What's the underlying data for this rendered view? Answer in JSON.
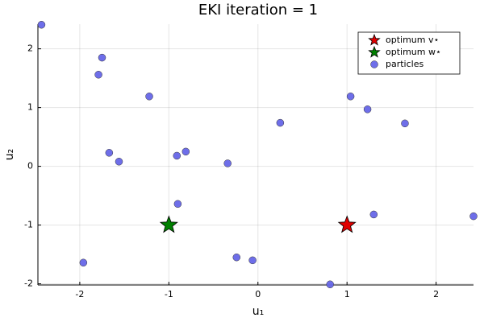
{
  "chart_data": {
    "type": "scatter",
    "title": "EKI iteration = 1",
    "x_label": "u₁",
    "y_label": "u₂",
    "xlim": [
      -2.47,
      2.42
    ],
    "ylim": [
      -2.02,
      2.42
    ],
    "xticks": [
      -2,
      -1,
      0,
      1,
      2
    ],
    "yticks": [
      -2,
      -1,
      0,
      1,
      2
    ],
    "grid": true,
    "legend": "top-right",
    "series": [
      {
        "name": "optimum v⋆",
        "color": "#e00000",
        "marker": "star",
        "x": [
          1
        ],
        "values": [
          -1
        ]
      },
      {
        "name": "optimum w⋆",
        "color": "#008000",
        "marker": "star",
        "x": [
          -1
        ],
        "values": [
          -1
        ]
      },
      {
        "name": "particles",
        "color": "#6666e8",
        "marker": "circle",
        "x": [
          -2.43,
          -1.75,
          -1.79,
          -1.22,
          -1.67,
          -1.56,
          -0.91,
          -0.81,
          -0.34,
          -0.9,
          0.25,
          1.04,
          1.23,
          1.65,
          1.3,
          2.42,
          -1.96,
          -0.24,
          -0.06,
          0.81
        ],
        "values": [
          2.41,
          1.85,
          1.56,
          1.19,
          0.23,
          0.08,
          0.18,
          0.25,
          0.05,
          -0.64,
          0.74,
          1.19,
          0.97,
          0.73,
          -0.82,
          -0.85,
          -1.64,
          -1.55,
          -1.6,
          -2.01
        ]
      }
    ]
  }
}
